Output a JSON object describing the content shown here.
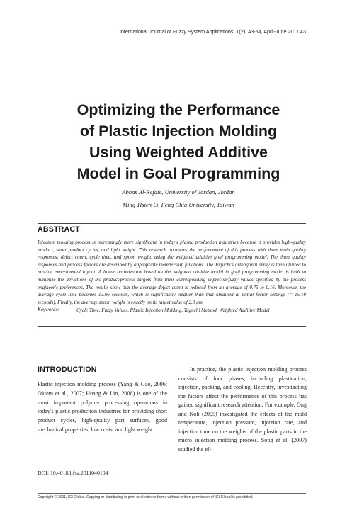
{
  "running_head": "International Journal of Fuzzy System Applications, 1(2), 43-54, April-June 2011   43",
  "title_lines": [
    "Optimizing the Performance",
    "of Plastic Injection Molding",
    "Using Weighted Additive",
    "Model in Goal Programming"
  ],
  "authors": [
    "Abbas Al-Refaie, University of Jordan, Jordan",
    "Ming-Hsien Li, Feng Chia University, Taiwan"
  ],
  "abstract": {
    "heading": "ABSTRACT",
    "text": "Injection molding process is increasingly more significant in today's plastic production industries because it provides high-quality product, short product cycles, and light weight. This research optimizes the performance of this process with three main quality responses: defect count, cycle time, and spoon weight, using the weighted additive goal programming model. The three quality responses and process factors are described by appropriate membership functions. The Taguchi's orthogonal array is then utilized to provide experimental layout. A linear optimization based on the weighted additive model in goal programming model is built to minimize the deviations of the product/process targets from their corresponding imprecise/fuzzy values specified by the process engineer's preferences. The results show that the average defect count is reduced from an average of 0.75 to 0.16. Moreover, the average cycle time becomes 13.06 seconds, which is significantly smaller than that obtained at initial factor settings (= 15.10 seconds). Finally, the average spoon weight is exactly on its target value of 2.0 gm."
  },
  "keywords": {
    "label": "Keywords:",
    "text": "Cycle Time, Fuzzy Values, Plastic Injection Molding, Taguchi Method, Weighted Additive Model"
  },
  "introduction": {
    "heading": "INTRODUCTION",
    "left_text": "Plastic injection molding process (Yang & Gao, 2006; Oktem et al., 2007; Huang & Lin, 2008) is one of the most important polymer processing operations in today's plastic production industries for providing short product cycles, high-quality part surfaces, good mechanical properties, low costs, and light weight.",
    "doi": "DOI: 10.4018/ijfsa.2011040104",
    "right_text": "In practice, the plastic injection molding process consists of four phases, including plastication, injection, packing, and cooling. Recently, investigating the factors affect the performance of this process has gained significant research attention. For example, Ong and Koh (2005) investigated the effects of the mold temperature, injection pressure, injection rate, and injection time on the weights of the plastic parts in the micro injection molding process. Song et al. (2007) studied the ef-"
  },
  "footer": "Copyright © 2011, IGI Global. Copying or distributing in print or electronic forms without written permission of IGI Global is prohibited."
}
